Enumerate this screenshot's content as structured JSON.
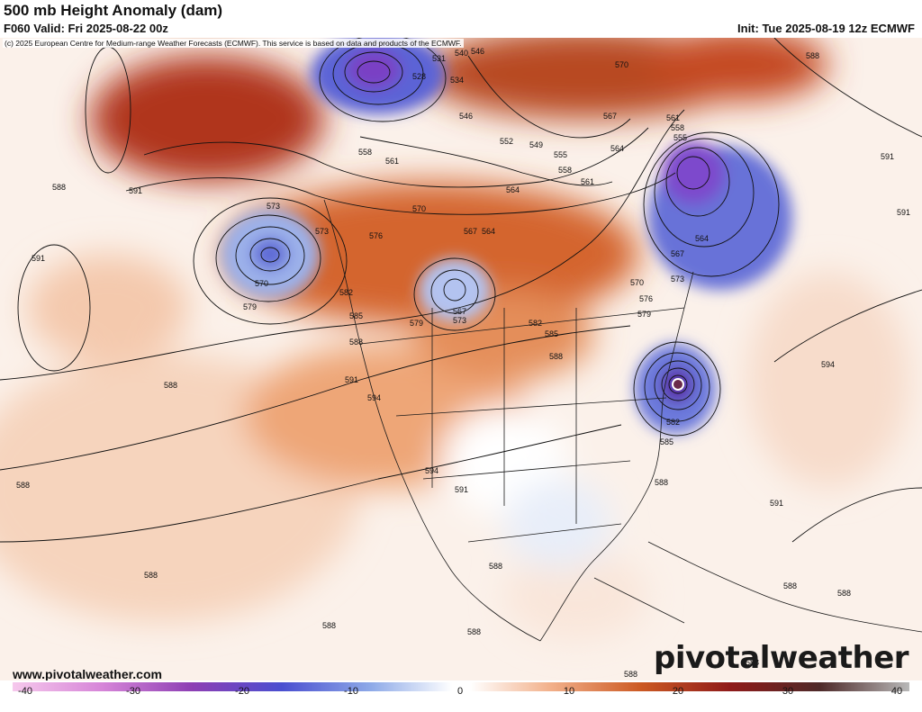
{
  "header": {
    "title": "500 mb Height Anomaly (dam)",
    "valid": "F060 Valid: Fri 2025-08-22 00z",
    "init": "Init: Tue 2025-08-19 12z ECMWF",
    "copyright": "(c) 2025 European Centre for Medium-range Weather Forecasts (ECMWF). This service is based on data and products of the ECMWF."
  },
  "footer": {
    "site": "www.pivotalweather.com",
    "logo": "pivotalweather"
  },
  "colorbar": {
    "labels": [
      "-40",
      "-30",
      "-20",
      "-10",
      "0",
      "10",
      "20",
      "30",
      "40"
    ]
  },
  "contour_labels": [
    {
      "text": "531"
    },
    {
      "text": "540"
    },
    {
      "text": "546"
    },
    {
      "text": "528"
    },
    {
      "text": "534"
    },
    {
      "text": "546"
    },
    {
      "text": "552"
    },
    {
      "text": "549"
    },
    {
      "text": "555"
    },
    {
      "text": "558"
    },
    {
      "text": "558"
    },
    {
      "text": "561"
    },
    {
      "text": "570"
    },
    {
      "text": "567"
    },
    {
      "text": "564"
    },
    {
      "text": "561"
    },
    {
      "text": "558"
    },
    {
      "text": "555"
    },
    {
      "text": "564"
    },
    {
      "text": "561"
    },
    {
      "text": "564"
    },
    {
      "text": "570"
    },
    {
      "text": "567"
    },
    {
      "text": "576"
    },
    {
      "text": "573"
    },
    {
      "text": "573"
    },
    {
      "text": "570"
    },
    {
      "text": "579"
    },
    {
      "text": "582"
    },
    {
      "text": "585"
    },
    {
      "text": "588"
    },
    {
      "text": "591"
    },
    {
      "text": "588"
    },
    {
      "text": "591"
    },
    {
      "text": "588"
    },
    {
      "text": "567"
    },
    {
      "text": "573"
    },
    {
      "text": "579"
    },
    {
      "text": "582"
    },
    {
      "text": "585"
    },
    {
      "text": "588"
    },
    {
      "text": "591"
    },
    {
      "text": "594"
    },
    {
      "text": "594"
    },
    {
      "text": "591"
    },
    {
      "text": "588"
    },
    {
      "text": "588"
    },
    {
      "text": "588"
    },
    {
      "text": "588"
    },
    {
      "text": "588"
    },
    {
      "text": "588"
    },
    {
      "text": "588"
    },
    {
      "text": "591"
    },
    {
      "text": "594"
    },
    {
      "text": "591"
    },
    {
      "text": "588"
    },
    {
      "text": "582"
    },
    {
      "text": "585"
    },
    {
      "text": "588"
    },
    {
      "text": "567"
    },
    {
      "text": "570"
    },
    {
      "text": "573"
    },
    {
      "text": "576"
    },
    {
      "text": "579"
    },
    {
      "text": "564"
    },
    {
      "text": "591"
    },
    {
      "text": "588"
    },
    {
      "text": "588"
    }
  ],
  "colors": {
    "positive_anomaly": "#c0552a",
    "negative_anomaly": "#5a5fd0",
    "strong_negative": "#7a3fc4",
    "contour": "#111111"
  }
}
